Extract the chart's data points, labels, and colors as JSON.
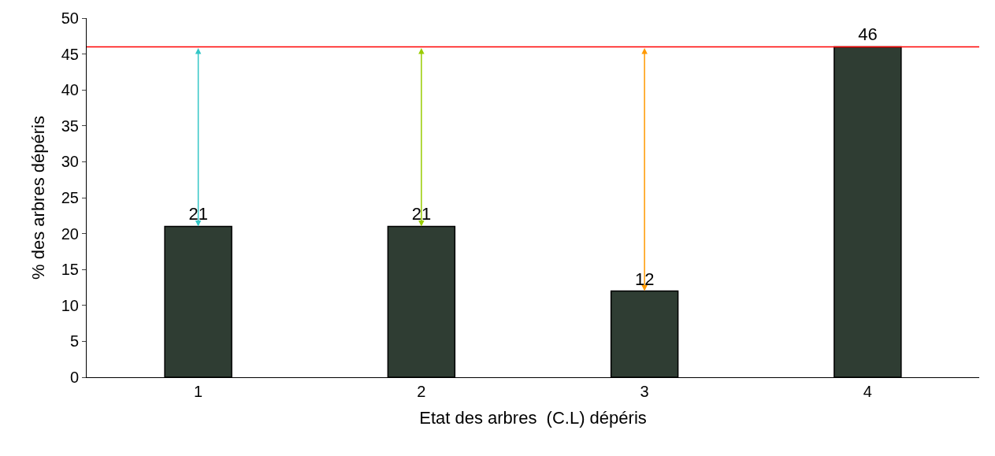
{
  "chart_data": {
    "type": "bar",
    "xlabel": "Etat des arbres  (C.L) dépéris",
    "ylabel": "% des arbres dépéris",
    "categories": [
      "1",
      "2",
      "3",
      "4"
    ],
    "values": [
      21,
      21,
      12,
      46
    ],
    "color": "#2f3d33",
    "ylim": [
      0,
      50
    ],
    "yticks": [
      0,
      5,
      10,
      15,
      20,
      25,
      30,
      35,
      40,
      45,
      50
    ],
    "data_labels": true,
    "ref_lines": [
      {
        "axis": "y",
        "value": 46,
        "color": "#ff0000"
      }
    ],
    "legend": false
  }
}
